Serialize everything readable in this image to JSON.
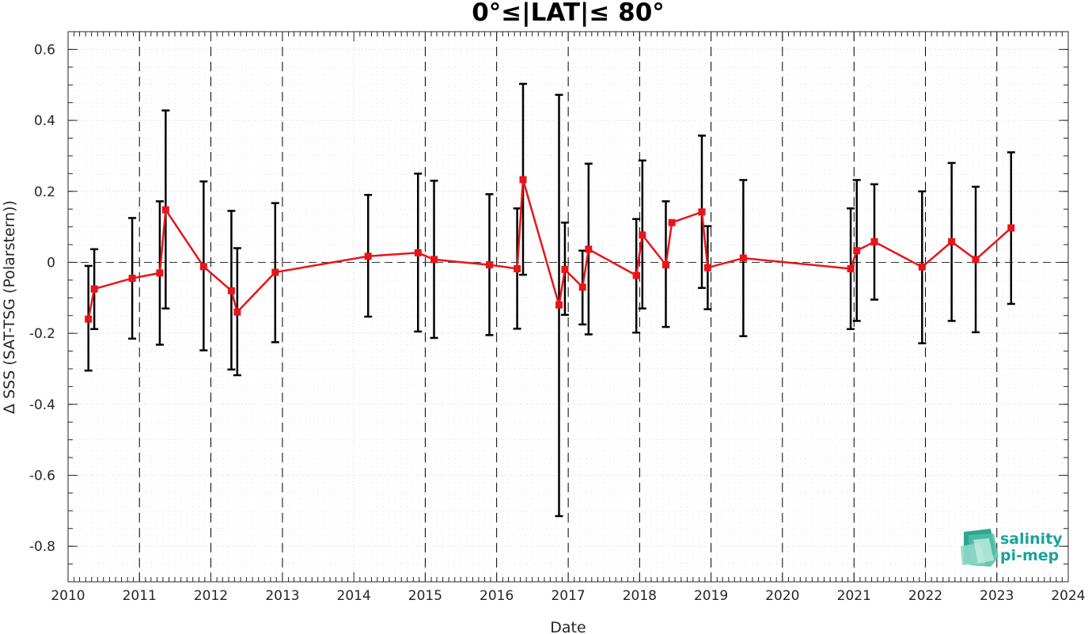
{
  "chart_data": {
    "type": "line",
    "title": "0°≤|LAT|≤ 80°",
    "xlabel": "Date",
    "ylabel": "Δ SSS (SAT-TSG (Polarstern))",
    "xlim": [
      "2010-01-01",
      "2024-01-01"
    ],
    "ylim": [
      -0.9,
      0.65
    ],
    "x_tick_labels": [
      "2010",
      "2011",
      "2012",
      "2013",
      "2014",
      "2015",
      "2016",
      "2017",
      "2018",
      "2019",
      "2020",
      "2021",
      "2022",
      "2023",
      "2024"
    ],
    "y_ticks": [
      -0.8,
      -0.6,
      -0.4,
      -0.2,
      0,
      0.2,
      0.4,
      0.6
    ],
    "y_tick_labels": [
      "-0.8",
      "-0.6",
      "-0.4",
      "-0.2",
      "0",
      "0.2",
      "0.4",
      "0.6"
    ],
    "grid": "dotted",
    "year_boundaries": [
      "2011-01-01",
      "2012-01-01",
      "2013-01-01",
      "2015-01-01",
      "2016-01-01",
      "2017-01-01",
      "2018-01-01",
      "2019-01-01",
      "2020-01-01",
      "2021-01-01",
      "2022-01-01",
      "2023-01-01"
    ],
    "zero_line": true,
    "series": [
      {
        "color": "#e8141a",
        "errorbar_color": "#000000",
        "marker": "square",
        "points": [
          {
            "x": "2010-04-15",
            "y": -0.16,
            "lo": -0.305,
            "hi": -0.01
          },
          {
            "x": "2010-05-15",
            "y": -0.075,
            "lo": -0.188,
            "hi": 0.037
          },
          {
            "x": "2010-11-25",
            "y": -0.045,
            "lo": -0.215,
            "hi": 0.125
          },
          {
            "x": "2011-04-15",
            "y": -0.03,
            "lo": -0.232,
            "hi": 0.172
          },
          {
            "x": "2011-05-15",
            "y": 0.148,
            "lo": -0.13,
            "hi": 0.428
          },
          {
            "x": "2011-11-25",
            "y": -0.012,
            "lo": -0.248,
            "hi": 0.228
          },
          {
            "x": "2012-04-15",
            "y": -0.08,
            "lo": -0.302,
            "hi": 0.145
          },
          {
            "x": "2012-05-15",
            "y": -0.14,
            "lo": -0.318,
            "hi": 0.04
          },
          {
            "x": "2012-11-25",
            "y": -0.028,
            "lo": -0.225,
            "hi": 0.167
          },
          {
            "x": "2014-03-15",
            "y": 0.017,
            "lo": -0.153,
            "hi": 0.19
          },
          {
            "x": "2014-11-25",
            "y": 0.027,
            "lo": -0.195,
            "hi": 0.25
          },
          {
            "x": "2015-02-15",
            "y": 0.008,
            "lo": -0.213,
            "hi": 0.23
          },
          {
            "x": "2015-11-25",
            "y": -0.007,
            "lo": -0.205,
            "hi": 0.192
          },
          {
            "x": "2016-04-15",
            "y": -0.018,
            "lo": -0.187,
            "hi": 0.152
          },
          {
            "x": "2016-05-15",
            "y": 0.233,
            "lo": -0.035,
            "hi": 0.503
          },
          {
            "x": "2016-11-15",
            "y": -0.12,
            "lo": -0.715,
            "hi": 0.472
          },
          {
            "x": "2016-12-15",
            "y": -0.02,
            "lo": -0.148,
            "hi": 0.112
          },
          {
            "x": "2017-03-15",
            "y": -0.07,
            "lo": -0.175,
            "hi": 0.033
          },
          {
            "x": "2017-04-15",
            "y": 0.037,
            "lo": -0.203,
            "hi": 0.278
          },
          {
            "x": "2017-12-15",
            "y": -0.037,
            "lo": -0.198,
            "hi": 0.122
          },
          {
            "x": "2018-01-15",
            "y": 0.077,
            "lo": -0.13,
            "hi": 0.287
          },
          {
            "x": "2018-05-15",
            "y": -0.007,
            "lo": -0.182,
            "hi": 0.172
          },
          {
            "x": "2018-06-15",
            "y": 0.112,
            "lo": null,
            "hi": null
          },
          {
            "x": "2018-11-15",
            "y": 0.142,
            "lo": -0.072,
            "hi": 0.357
          },
          {
            "x": "2018-12-15",
            "y": -0.015,
            "lo": -0.132,
            "hi": 0.102
          },
          {
            "x": "2019-06-15",
            "y": 0.012,
            "lo": -0.208,
            "hi": 0.232
          },
          {
            "x": "2020-12-15",
            "y": -0.018,
            "lo": -0.188,
            "hi": 0.152
          },
          {
            "x": "2021-01-15",
            "y": 0.033,
            "lo": -0.165,
            "hi": 0.232
          },
          {
            "x": "2021-04-15",
            "y": 0.058,
            "lo": -0.105,
            "hi": 0.22
          },
          {
            "x": "2021-12-15",
            "y": -0.013,
            "lo": -0.228,
            "hi": 0.2
          },
          {
            "x": "2022-05-15",
            "y": 0.058,
            "lo": -0.165,
            "hi": 0.28
          },
          {
            "x": "2022-09-15",
            "y": 0.008,
            "lo": -0.197,
            "hi": 0.213
          },
          {
            "x": "2023-03-15",
            "y": 0.097,
            "lo": -0.117,
            "hi": 0.31
          }
        ]
      }
    ]
  },
  "logo": {
    "line1": "salinity",
    "line2": "pi-mep"
  }
}
